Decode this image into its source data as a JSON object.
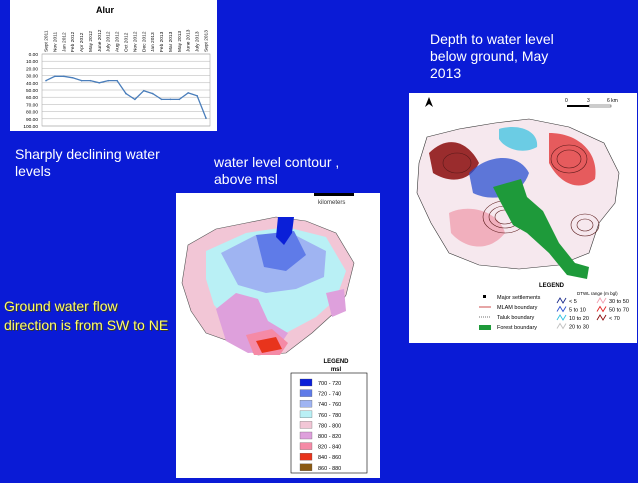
{
  "chart_data": {
    "type": "line",
    "title": "Alur",
    "categories": [
      "Sept 2011",
      "Nov 2011",
      "Jan 2012",
      "Feb 2012",
      "Apr 2012",
      "May 2012",
      "June 2012",
      "July 2012",
      "Aug 2012",
      "Oct 2012",
      "Nov 2012",
      "Dec 2012",
      "Jan 2013",
      "Feb 2013",
      "Mar 2013",
      "May 2013",
      "June 2013",
      "July 2013",
      "Sept 2013"
    ],
    "values": [
      37,
      31,
      31,
      33,
      37,
      37,
      40,
      37,
      37,
      55,
      63,
      51,
      55,
      63,
      63,
      63,
      54,
      58,
      89
    ],
    "y_tick_labels": [
      "0.00",
      "10.00",
      "20.00",
      "30.00",
      "40.00",
      "50.00",
      "60.00",
      "70.00",
      "80.00",
      "90.00",
      "100.00"
    ],
    "ylim": [
      0,
      100
    ],
    "y_inverted": true,
    "grid": true,
    "series_color": "#4a7ebb"
  },
  "captions": {
    "declining": "Sharply declining water levels",
    "contour": "water level contour , above msl",
    "depth": "Depth to water level below ground, May 2013",
    "flow": "Ground water flow direction is from  SW to NE"
  },
  "contour_map": {
    "scale_label": "kilometers",
    "legend_title": "LEGEND",
    "legend_unit": "msl",
    "legend": [
      {
        "label": "700 - 720",
        "color": "#0a1fd8"
      },
      {
        "label": "720 - 740",
        "color": "#5f7be8"
      },
      {
        "label": "740 - 760",
        "color": "#9fb4f2"
      },
      {
        "label": "760 - 780",
        "color": "#b9f0f5"
      },
      {
        "label": "780 - 800",
        "color": "#f2c6d6"
      },
      {
        "label": "800 - 820",
        "color": "#dea0dc"
      },
      {
        "label": "820 - 840",
        "color": "#f58aa6"
      },
      {
        "label": "840 - 860",
        "color": "#e8341c"
      },
      {
        "label": "860 - 880",
        "color": "#8a5a14"
      }
    ]
  },
  "depth_map": {
    "scale_labels": [
      "0",
      "3",
      "6  km"
    ],
    "legend_title": "LEGEND",
    "dtwl_title": "DTWL range (m bgl)",
    "legend_left": [
      "Major settlements",
      "MLAM boundary",
      "Taluk boundary",
      "Forest boundary"
    ],
    "dtwl_ranges": [
      {
        "label": "< 5",
        "color": "#1a2a8a"
      },
      {
        "label": "30 to 50",
        "color": "#f0a0b0"
      },
      {
        "label": "5 to 10",
        "color": "#2a50d0"
      },
      {
        "label": "50 to 70",
        "color": "#e02020"
      },
      {
        "label": "10 to 20",
        "color": "#30c0e0"
      },
      {
        "label": "< 70",
        "color": "#8a0a0a"
      },
      {
        "label": "20 to 30",
        "color": "#c0c0c0"
      }
    ],
    "forest_color": "#1e9a3a"
  }
}
